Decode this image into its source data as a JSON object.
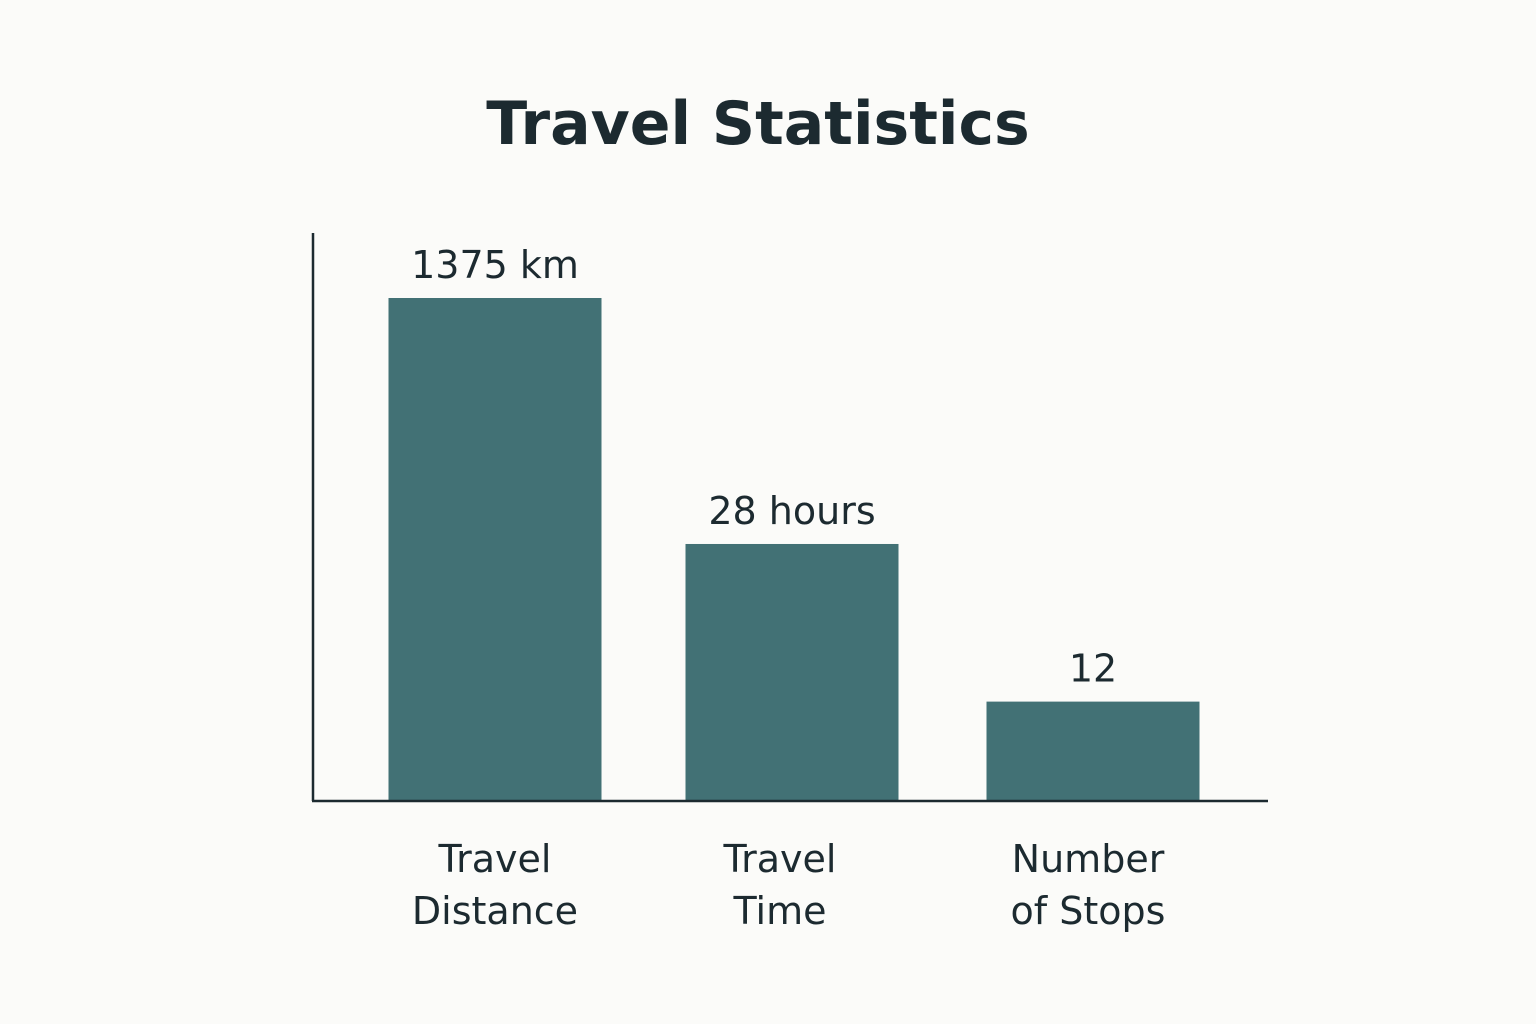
{
  "chart_data": {
    "type": "bar",
    "title": "Travel Statistics",
    "categories": [
      [
        "Travel",
        "Distance"
      ],
      [
        "Travel",
        "Time"
      ],
      [
        "Number",
        "of Stops"
      ]
    ],
    "values": [
      1375,
      28,
      12
    ],
    "value_labels": [
      "1375 km",
      "28 hours",
      "12"
    ],
    "bar_fraction": [
      1.0,
      0.51,
      0.196
    ],
    "xlabel": "",
    "ylabel": "",
    "grid": false,
    "legend": "none",
    "bar_color": "#427175",
    "axis_color": "#1c2a30"
  }
}
